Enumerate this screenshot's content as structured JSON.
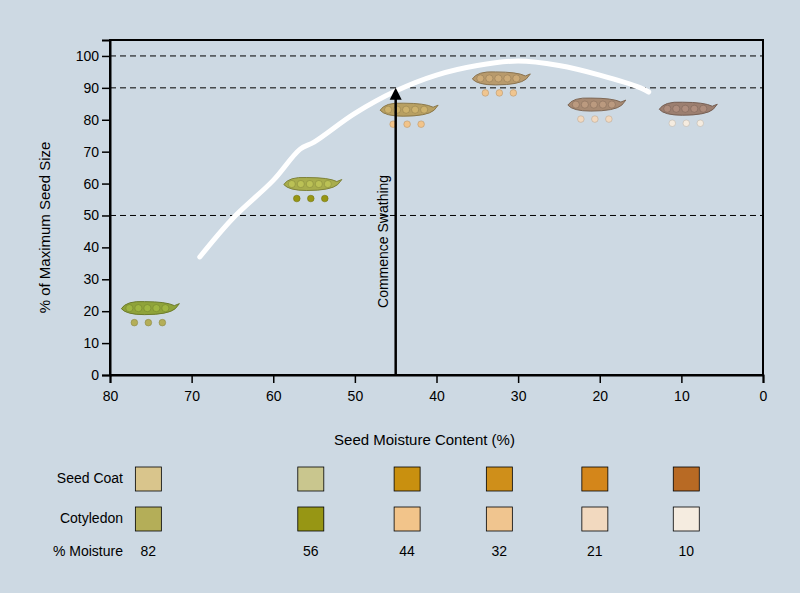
{
  "chart_data": {
    "type": "line",
    "x_label": "Seed Moisture Content (%)",
    "y_label": "% of Maximum Seed Size",
    "xlim": [
      80,
      0
    ],
    "ylim": [
      0,
      105
    ],
    "xticks": [
      80,
      70,
      60,
      50,
      40,
      30,
      20,
      10,
      0
    ],
    "yticks": [
      0,
      10,
      20,
      30,
      40,
      50,
      60,
      70,
      80,
      90,
      100
    ],
    "reference_lines": [
      50,
      90,
      100
    ],
    "series": [
      {
        "type": "line",
        "color": "#ffffff",
        "x": [
          69,
          65,
          60,
          56.7,
          55,
          50,
          45,
          40,
          35,
          30,
          25,
          20,
          15,
          14
        ],
        "values": [
          37,
          49,
          61,
          70.8,
          73,
          82,
          89,
          94,
          97,
          98.4,
          97,
          94,
          90,
          88.7
        ]
      },
      {
        "type": "scatter",
        "marker": "pod",
        "colors": [
          "#8fa33a",
          "#a8ad4c",
          "#b8a062",
          "#b89a6c",
          "#a88a72",
          "#9c7f70"
        ],
        "x": [
          75.3,
          55.4,
          43.6,
          32.3,
          20.6,
          9.4
        ],
        "values": [
          20.8,
          59.7,
          83,
          92.8,
          84.6,
          83.3
        ]
      }
    ],
    "annotations": [
      {
        "text": "Commence Swathing",
        "x": 45,
        "y_start": 0,
        "y_end": 90
      }
    ],
    "swatch_table": {
      "row_labels": [
        "Seed Coat",
        "Cotyledon",
        "% Moisture"
      ],
      "seed_coat": [
        "#d9c58c",
        "#c9c68e",
        "#c9900f",
        "#cf8f1a",
        "#d4861a",
        "#b86a24"
      ],
      "cotyledon": [
        "#b4ae58",
        "#979614",
        "#f2c48a",
        "#f0c58f",
        "#f2d9bf",
        "#f5ece0"
      ],
      "moisture": [
        82,
        56,
        44,
        32,
        21,
        10
      ]
    }
  }
}
